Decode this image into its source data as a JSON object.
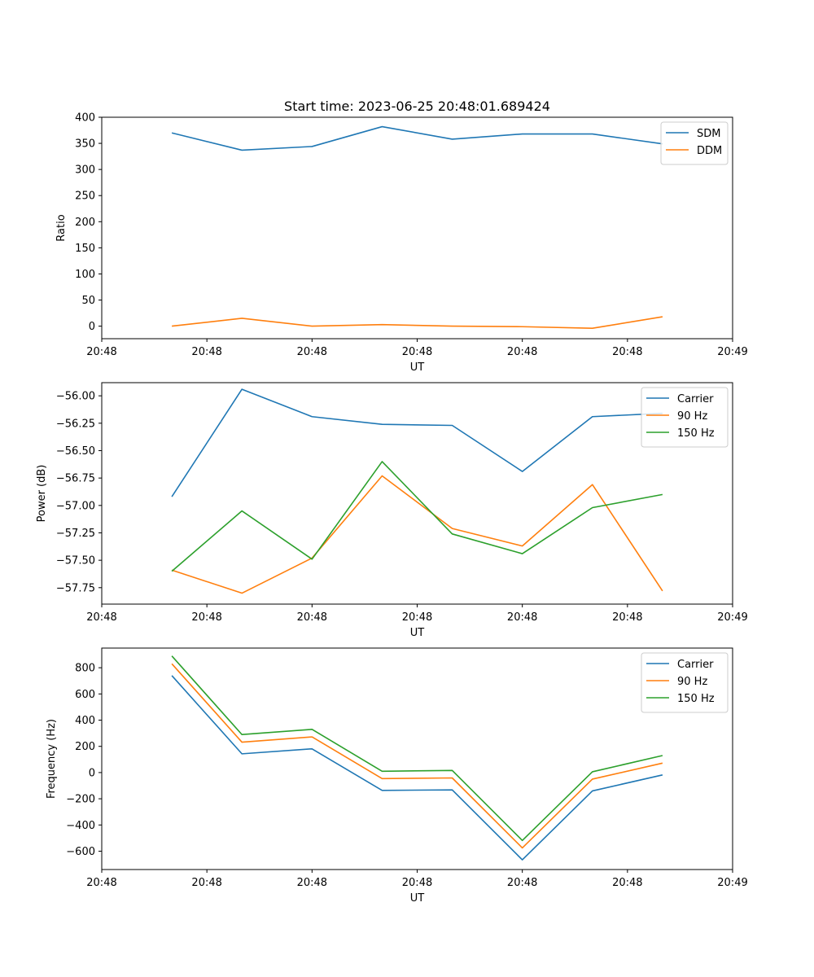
{
  "chart_data": [
    {
      "type": "line",
      "title": "Start time: 2023-06-25 20:48:01.689424",
      "xlabel": "UT",
      "ylabel": "Ratio",
      "x": [
        1,
        2,
        3,
        4,
        5,
        6,
        7,
        8
      ],
      "xlim": [
        0,
        9
      ],
      "xticks": [
        0,
        1.5,
        3,
        4.5,
        6,
        7.5,
        9
      ],
      "xtick_labels": [
        "20:48",
        "20:48",
        "20:48",
        "20:48",
        "20:48",
        "20:48",
        "20:49"
      ],
      "ylim": [
        -24,
        400
      ],
      "yticks": [
        0,
        50,
        100,
        150,
        200,
        250,
        300,
        350,
        400
      ],
      "ytick_labels": [
        "0",
        "50",
        "100",
        "150",
        "200",
        "250",
        "300",
        "350",
        "400"
      ],
      "legend_position": "top-right",
      "grid": false,
      "series": [
        {
          "name": "SDM",
          "color": "#1f77b4",
          "values": [
            370,
            337,
            344,
            382,
            358,
            368,
            368,
            349
          ]
        },
        {
          "name": "DDM",
          "color": "#ff7f0e",
          "values": [
            0,
            15,
            0,
            3,
            0,
            -1,
            -4,
            18
          ]
        }
      ]
    },
    {
      "type": "line",
      "xlabel": "UT",
      "ylabel": "Power (dB)",
      "x": [
        1,
        2,
        3,
        4,
        5,
        6,
        7,
        8
      ],
      "xlim": [
        0,
        9
      ],
      "xticks": [
        0,
        1.5,
        3,
        4.5,
        6,
        7.5,
        9
      ],
      "xtick_labels": [
        "20:48",
        "20:48",
        "20:48",
        "20:48",
        "20:48",
        "20:48",
        "20:49"
      ],
      "ylim": [
        -57.9,
        -55.88
      ],
      "yticks": [
        -57.75,
        -57.5,
        -57.25,
        -57.0,
        -56.75,
        -56.5,
        -56.25,
        -56.0
      ],
      "ytick_labels": [
        "−57.75",
        "−57.50",
        "−57.25",
        "−57.00",
        "−56.75",
        "−56.50",
        "−56.25",
        "−56.00"
      ],
      "legend_position": "top-right",
      "grid": false,
      "series": [
        {
          "name": "Carrier",
          "color": "#1f77b4",
          "values": [
            -56.92,
            -55.94,
            -56.19,
            -56.26,
            -56.27,
            -56.69,
            -56.19,
            -56.16
          ]
        },
        {
          "name": "90 Hz",
          "color": "#ff7f0e",
          "values": [
            -57.59,
            -57.8,
            -57.48,
            -56.73,
            -57.21,
            -57.37,
            -56.81,
            -57.78
          ]
        },
        {
          "name": "150 Hz",
          "color": "#2ca02c",
          "values": [
            -57.6,
            -57.05,
            -57.49,
            -56.6,
            -57.26,
            -57.44,
            -57.02,
            -56.9
          ]
        }
      ]
    },
    {
      "type": "line",
      "xlabel": "UT",
      "ylabel": "Frequency (Hz)",
      "x": [
        1,
        2,
        3,
        4,
        5,
        6,
        7,
        8
      ],
      "xlim": [
        0,
        9
      ],
      "xticks": [
        0,
        1.5,
        3,
        4.5,
        6,
        7.5,
        9
      ],
      "xtick_labels": [
        "20:48",
        "20:48",
        "20:48",
        "20:48",
        "20:48",
        "20:48",
        "20:49"
      ],
      "ylim": [
        -740,
        950
      ],
      "yticks": [
        -600,
        -400,
        -200,
        0,
        200,
        400,
        600,
        800
      ],
      "ytick_labels": [
        "−600",
        "−400",
        "−200",
        "0",
        "200",
        "400",
        "600",
        "800"
      ],
      "legend_position": "top-right",
      "grid": false,
      "series": [
        {
          "name": "Carrier",
          "color": "#1f77b4",
          "values": [
            740,
            143,
            181,
            -136,
            -132,
            -666,
            -140,
            -18
          ]
        },
        {
          "name": "90 Hz",
          "color": "#ff7f0e",
          "values": [
            830,
            232,
            272,
            -46,
            -41,
            -575,
            -50,
            72
          ]
        },
        {
          "name": "150 Hz",
          "color": "#2ca02c",
          "values": [
            890,
            290,
            330,
            10,
            16,
            -518,
            6,
            130
          ]
        }
      ]
    }
  ]
}
